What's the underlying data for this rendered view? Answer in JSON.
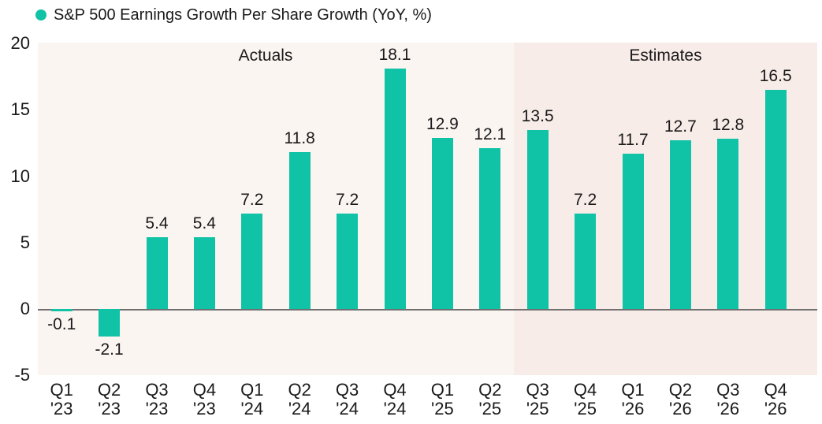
{
  "legend": {
    "label": "S&P 500 Earnings Growth Per Share Growth (YoY, %)",
    "marker_color": "#10c2a6"
  },
  "chart_data": {
    "type": "bar",
    "title": "S&P 500 Earnings Growth Per Share Growth (YoY, %)",
    "categories": [
      "Q1 '23",
      "Q2 '23",
      "Q3 '23",
      "Q4 '23",
      "Q1 '24",
      "Q2 '24",
      "Q3 '24",
      "Q4 '24",
      "Q1 '25",
      "Q2 '25",
      "Q3 '25",
      "Q4 '25",
      "Q1 '26",
      "Q2 '26",
      "Q3 '26",
      "Q4 '26"
    ],
    "values": [
      -0.1,
      -2.1,
      5.4,
      5.4,
      7.2,
      11.8,
      7.2,
      18.1,
      12.9,
      12.1,
      13.5,
      7.2,
      11.7,
      12.7,
      12.8,
      16.5
    ],
    "data_labels": [
      "-0.1",
      "-2.1",
      "5.4",
      "5.4",
      "7.2",
      "11.8",
      "7.2",
      "18.1",
      "12.9",
      "12.1",
      "13.5",
      "7.2",
      "11.7",
      "12.7",
      "12.8",
      "16.5"
    ],
    "sections": [
      {
        "label": "Actuals",
        "from_index": 0,
        "to_index": 9
      },
      {
        "label": "Estimates",
        "from_index": 10,
        "to_index": 15
      }
    ],
    "y_ticks": [
      20,
      15,
      10,
      5,
      0,
      -5
    ],
    "ylim": [
      -5,
      20
    ],
    "xlabel": "",
    "ylabel": "",
    "grid": false,
    "legend_position": "top-left",
    "bar_color": "#10c2a6",
    "actuals_bg_color": "#fbf5f2",
    "estimates_bg_color": "#f8ece8",
    "zero_line_color": "#707070",
    "text_color": "#1a1a1a"
  }
}
